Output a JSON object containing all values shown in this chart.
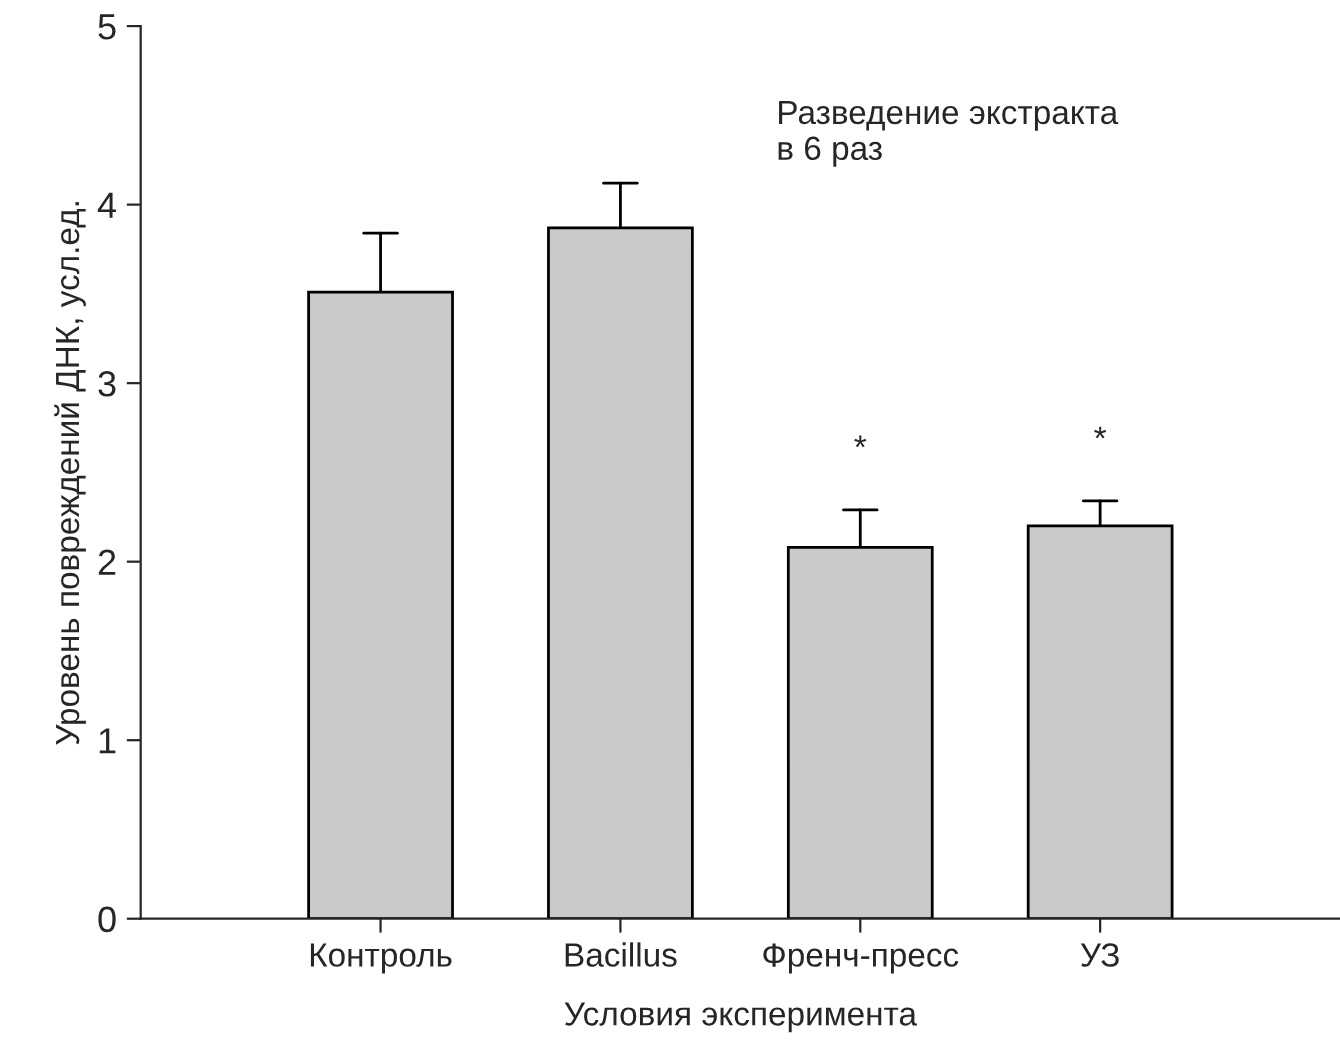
{
  "chart_data": {
    "type": "bar",
    "xlabel": "Условия эксперимента",
    "ylabel": "Уровень повреждений ДНК, усл.ед.",
    "categories": [
      "Контроль",
      "Bacillus",
      "Френч-пресс",
      "УЗ"
    ],
    "values": [
      3.51,
      3.87,
      2.08,
      2.2
    ],
    "errors": [
      [
        3.51,
        3.84
      ],
      [
        3.87,
        4.12
      ],
      [
        2.08,
        2.29
      ],
      [
        2.2,
        2.34
      ]
    ],
    "color": "#c8c9cb",
    "ylim": [
      0,
      5
    ],
    "yticks": [
      0,
      1,
      2,
      3,
      4,
      5
    ],
    "grid": false,
    "annotations": [
      "Разведение экстракта\nв 6 раз",
      {
        "text": "*",
        "x": "Френч-пресс",
        "y": 2.29
      },
      {
        "text": "*",
        "x": "УЗ",
        "y": 2.34
      }
    ]
  }
}
